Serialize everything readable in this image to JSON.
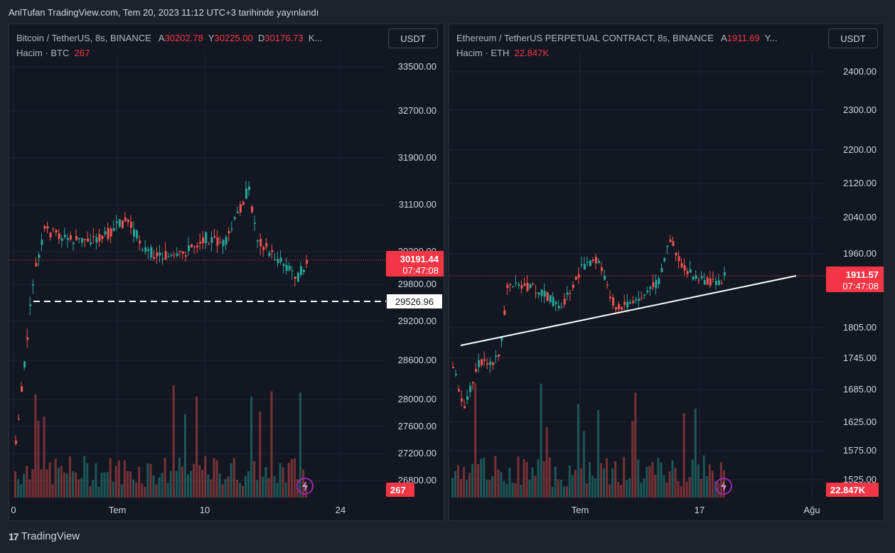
{
  "header": {
    "published": "AnlTufan TradingView.com, Tem 20, 2023 11:12 UTC+3 tarihinde yayınlandı"
  },
  "footer": {
    "brand": "TradingView"
  },
  "colors": {
    "up": "#26a69a",
    "down": "#ef5350",
    "bg": "#131722",
    "frame": "#1e222d",
    "grid": "#1f2330",
    "price_label": "#f23645"
  },
  "left": {
    "legend": {
      "name": "Bitcoin / TetherUS, 8s, BINANCE",
      "a_label": "A",
      "a": "30202.78",
      "y_label": "Y",
      "y": "30225.00",
      "d_label": "D",
      "d": "30176.73",
      "more": "K..."
    },
    "volume": {
      "label": "Hacim · BTC",
      "value": "267"
    },
    "currency": "USDT",
    "price_ticks": [
      "33500.00",
      "32700.00",
      "31900.00",
      "31100.00",
      "30300.00",
      "29800.00",
      "29200.00",
      "28600.00",
      "28000.00",
      "27600.00",
      "27200.00",
      "26800.00"
    ],
    "time_ticks": [
      "0",
      "Tem",
      "10",
      "24"
    ],
    "last_price": "30191.44",
    "countdown": "07:47:08",
    "support_level": "29526.96",
    "volume_badge": "267"
  },
  "right": {
    "legend": {
      "name": "Ethereum / TetherUS PERPETUAL CONTRACT, 8s, BINANCE",
      "a_label": "A",
      "a": "1911.69",
      "more": "Y..."
    },
    "volume": {
      "label": "Hacim · ETH",
      "value": "22.847K"
    },
    "currency": "USDT",
    "price_ticks": [
      "2400.00",
      "2300.00",
      "2200.00",
      "2120.00",
      "2040.00",
      "1960.00",
      "1805.00",
      "1745.00",
      "1685.00",
      "1625.00",
      "1575.00",
      "1525.00"
    ],
    "time_ticks": [
      "Tem",
      "17",
      "Ağu"
    ],
    "last_price": "1911.57",
    "countdown": "07:47:08",
    "volume_badge": "22.847K"
  }
}
